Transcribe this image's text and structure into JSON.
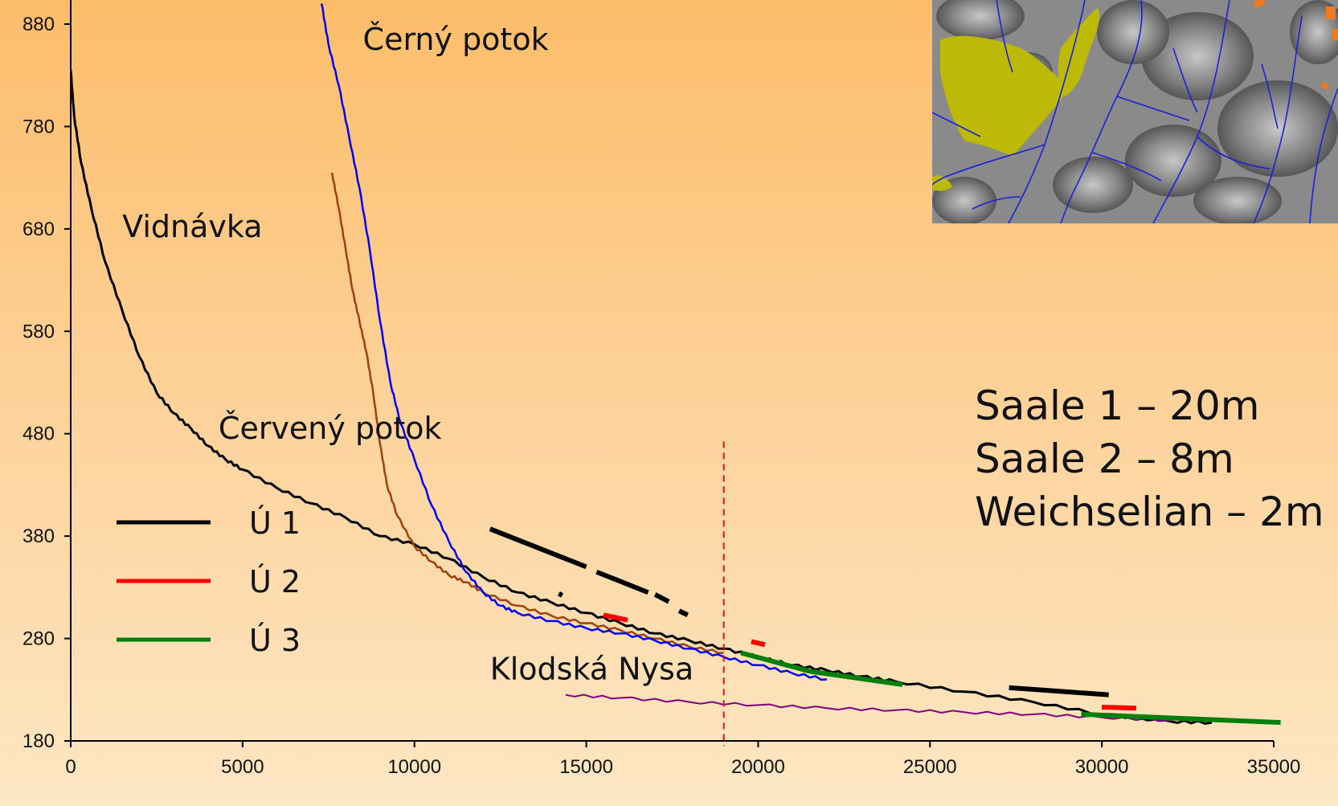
{
  "chart_data": {
    "type": "line",
    "title": "",
    "xlabel": "",
    "ylabel": "",
    "xlim": [
      0,
      35000
    ],
    "ylim": [
      180,
      880
    ],
    "xticks": [
      0,
      5000,
      10000,
      15000,
      20000,
      25000,
      30000,
      35000
    ],
    "yticks": [
      180,
      280,
      380,
      480,
      580,
      680,
      780,
      880
    ],
    "grid": false,
    "legend_position": "bottom-left",
    "legend": [
      {
        "label": "Ú 1",
        "color": "#000000"
      },
      {
        "label": "Ú 2",
        "color": "#ff0000"
      },
      {
        "label": "Ú 3",
        "color": "#00800a"
      }
    ],
    "profiles": [
      {
        "name": "Vidnávka",
        "color": "#000000",
        "x": [
          0,
          100,
          300,
          600,
          1000,
          1500,
          2000,
          2500,
          3000,
          3500,
          4000,
          4500,
          5000,
          6000,
          7000,
          8000,
          9000,
          10000,
          11000,
          12000,
          13000,
          14000,
          15000,
          16000,
          17000,
          18000,
          19000,
          20000,
          21000,
          22000,
          23000,
          24000,
          26000,
          28000,
          30000,
          32000,
          33200
        ],
        "y": [
          835,
          790,
          745,
          700,
          648,
          600,
          555,
          520,
          500,
          485,
          468,
          455,
          445,
          427,
          412,
          398,
          380,
          372,
          358,
          340,
          325,
          315,
          305,
          295,
          285,
          278,
          270,
          262,
          254,
          249,
          243,
          238,
          228,
          218,
          206,
          199,
          198
        ]
      },
      {
        "name": "Červený potok",
        "color": "#a0400a",
        "x": [
          7600,
          7800,
          8000,
          8200,
          8400,
          8600,
          8800,
          9000,
          9200,
          9500,
          10000,
          10500,
          11000,
          11500,
          12000,
          13000,
          14000,
          15000,
          16000,
          17000,
          18000,
          19000
        ],
        "y": [
          735,
          700,
          660,
          620,
          590,
          560,
          520,
          470,
          430,
          400,
          370,
          355,
          342,
          335,
          325,
          312,
          302,
          295,
          288,
          280,
          272,
          266
        ]
      },
      {
        "name": "Černý potok",
        "color": "#0000ff",
        "x": [
          7300,
          7500,
          7800,
          8100,
          8400,
          8700,
          9000,
          9300,
          9600,
          10000,
          10500,
          11000,
          11500,
          12000,
          12500,
          13000,
          14000,
          15000,
          16000,
          17000,
          18000,
          19000,
          20000,
          21000,
          22000
        ],
        "y": [
          900,
          860,
          820,
          770,
          720,
          660,
          590,
          530,
          490,
          455,
          410,
          375,
          345,
          325,
          312,
          305,
          297,
          290,
          285,
          278,
          270,
          262,
          254,
          246,
          240
        ]
      },
      {
        "name": "Klodská Nysa",
        "color": "#800080",
        "x": [
          14400,
          16000,
          18000,
          20000,
          22000,
          24000,
          26000,
          28000,
          30000,
          32000
        ],
        "y": [
          225,
          222,
          218,
          215,
          212,
          210,
          208,
          206,
          203,
          200
        ]
      }
    ],
    "terraces": [
      {
        "level": "Ú 1",
        "x": [
          12200,
          15000
        ],
        "y": [
          387,
          350
        ]
      },
      {
        "level": "Ú 1",
        "x": [
          15300,
          16800
        ],
        "y": [
          345,
          325
        ]
      },
      {
        "level": "Ú 1",
        "x": [
          17000,
          17400
        ],
        "y": [
          323,
          316
        ]
      },
      {
        "level": "Ú 1",
        "x": [
          17700,
          17950
        ],
        "y": [
          307,
          303
        ]
      },
      {
        "level": "Ú 1",
        "x": [
          14200,
          14300
        ],
        "y": [
          324,
          322
        ]
      },
      {
        "level": "Ú 1",
        "x": [
          27300,
          30200
        ],
        "y": [
          232,
          225
        ]
      },
      {
        "level": "Ú 2",
        "x": [
          15500,
          16200
        ],
        "y": [
          303,
          298
        ]
      },
      {
        "level": "Ú 2",
        "x": [
          19800,
          20200
        ],
        "y": [
          277,
          274
        ]
      },
      {
        "level": "Ú 2",
        "x": [
          30000,
          31000
        ],
        "y": [
          213,
          212
        ]
      },
      {
        "level": "Ú 3",
        "x": [
          19500,
          21500
        ],
        "y": [
          266,
          248
        ]
      },
      {
        "level": "Ú 3",
        "x": [
          21500,
          24200
        ],
        "y": [
          248,
          235
        ]
      },
      {
        "level": "Ú 3",
        "x": [
          29400,
          35200
        ],
        "y": [
          206,
          198
        ]
      }
    ],
    "reference_x": 19000,
    "annotations": [
      {
        "text": "Černý potok",
        "x": 8500,
        "y": 855
      },
      {
        "text": "Vidnávka",
        "x": 1500,
        "y": 672
      },
      {
        "text": "Červený potok",
        "x": 4300,
        "y": 475
      },
      {
        "text": "Klodská Nysa",
        "x": 12200,
        "y": 240
      }
    ]
  },
  "info": {
    "lines": [
      "Saale 1 – 20m",
      "Saale 2 – 8m",
      "Weichselian – 2m"
    ]
  },
  "inset": {
    "colors": {
      "relief": "#8a8a8a",
      "deposit": "#bcba07",
      "river": "#1a22d8",
      "marker": "#f07820"
    }
  }
}
